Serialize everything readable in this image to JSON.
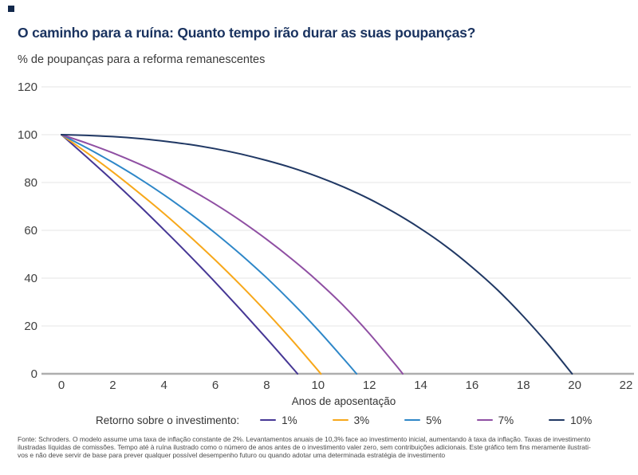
{
  "brand": {
    "accent_color": "#12284b"
  },
  "header": {
    "title": "O caminho para a ruína: Quanto tempo irão durar as suas poupanças?",
    "title_color": "#19325f",
    "subtitle": "% de poupanças para a reforma remanescentes"
  },
  "chart_data": {
    "type": "line",
    "title": "O caminho para a ruína: Quanto tempo irão durar as suas poupanças?",
    "ylabel": "% de poupanças para a reforma remanescentes",
    "xlabel": "Anos de aposentação",
    "xlim": [
      0,
      22
    ],
    "ylim": [
      0,
      120
    ],
    "x_ticks": [
      0,
      2,
      4,
      6,
      8,
      10,
      12,
      14,
      16,
      18,
      20,
      22
    ],
    "y_ticks": [
      0,
      20,
      40,
      60,
      80,
      100,
      120
    ],
    "grid": "horizontal",
    "grid_color": "#e5e5e5",
    "axis_color": "#aeaeae",
    "tick_label_color": "#404040",
    "legend_label": "Retorno sobre o investimento:",
    "legend_position": "bottom",
    "series": [
      {
        "name": "1%",
        "color": "#463795",
        "years_to_zero": 9.2,
        "points": [
          [
            0,
            100
          ],
          [
            1,
            90.5
          ],
          [
            2,
            80.8
          ],
          [
            3,
            70.7
          ],
          [
            4,
            60.2
          ],
          [
            5,
            49.4
          ],
          [
            6,
            38.2
          ],
          [
            7,
            26.6
          ],
          [
            8,
            14.7
          ],
          [
            9,
            2.5
          ],
          [
            9.2,
            0
          ]
        ]
      },
      {
        "name": "3%",
        "color": "#f7a81b",
        "years_to_zero": 10.1,
        "points": [
          [
            0,
            100
          ],
          [
            1,
            92.4
          ],
          [
            2,
            84.4
          ],
          [
            3,
            75.9
          ],
          [
            4,
            67.0
          ],
          [
            5,
            57.5
          ],
          [
            6,
            47.5
          ],
          [
            7,
            36.9
          ],
          [
            8,
            25.7
          ],
          [
            9,
            13.9
          ],
          [
            10,
            1.4
          ],
          [
            10.1,
            0
          ]
        ]
      },
      {
        "name": "5%",
        "color": "#2e87c8",
        "years_to_zero": 11.5,
        "points": [
          [
            0,
            100
          ],
          [
            1,
            94.4
          ],
          [
            2,
            88.4
          ],
          [
            3,
            81.9
          ],
          [
            4,
            74.8
          ],
          [
            5,
            67.1
          ],
          [
            6,
            58.8
          ],
          [
            7,
            49.8
          ],
          [
            8,
            40.1
          ],
          [
            9,
            29.6
          ],
          [
            10,
            18.3
          ],
          [
            11,
            6.2
          ],
          [
            11.5,
            0
          ]
        ]
      },
      {
        "name": "7%",
        "color": "#8f4fa3",
        "years_to_zero": 13.3,
        "points": [
          [
            0,
            100
          ],
          [
            1,
            96.4
          ],
          [
            2,
            92.4
          ],
          [
            3,
            87.9
          ],
          [
            4,
            82.9
          ],
          [
            5,
            77.2
          ],
          [
            6,
            70.9
          ],
          [
            7,
            63.9
          ],
          [
            8,
            56.2
          ],
          [
            9,
            47.8
          ],
          [
            10,
            38.6
          ],
          [
            11,
            28.4
          ],
          [
            12,
            16.8
          ],
          [
            13,
            4.0
          ],
          [
            13.3,
            0
          ]
        ]
      },
      {
        "name": "10%",
        "color": "#203864",
        "years_to_zero": 19.9,
        "points": [
          [
            0,
            100
          ],
          [
            1,
            99.7
          ],
          [
            2,
            99.2
          ],
          [
            3,
            98.4
          ],
          [
            4,
            97.3
          ],
          [
            5,
            95.9
          ],
          [
            6,
            94.1
          ],
          [
            7,
            91.9
          ],
          [
            8,
            89.2
          ],
          [
            9,
            86.1
          ],
          [
            10,
            82.4
          ],
          [
            11,
            78.1
          ],
          [
            12,
            73.1
          ],
          [
            13,
            67.3
          ],
          [
            14,
            60.7
          ],
          [
            15,
            53.2
          ],
          [
            16,
            44.6
          ],
          [
            17,
            35.0
          ],
          [
            18,
            24.0
          ],
          [
            19,
            11.9
          ],
          [
            19.9,
            0
          ]
        ]
      }
    ]
  },
  "footnote": {
    "lines": [
      "Fonte: Schroders. O modelo assume uma taxa de inflação constante de 2%. Levantamentos anuais de 10,3% face ao investimento inicial, aumentando à taxa da inflação. Taxas de investimento",
      "ilustradas líquidas de comissões. Tempo até à ruína ilustrado como o número de anos antes de o investimento valer zero, sem contribuições adicionais. Este gráfico tem fins meramente ilustrati-",
      "vos e não deve servir de base para prever qualquer possível desempenho futuro ou quando adotar uma determinada estratégia de investimento"
    ]
  }
}
